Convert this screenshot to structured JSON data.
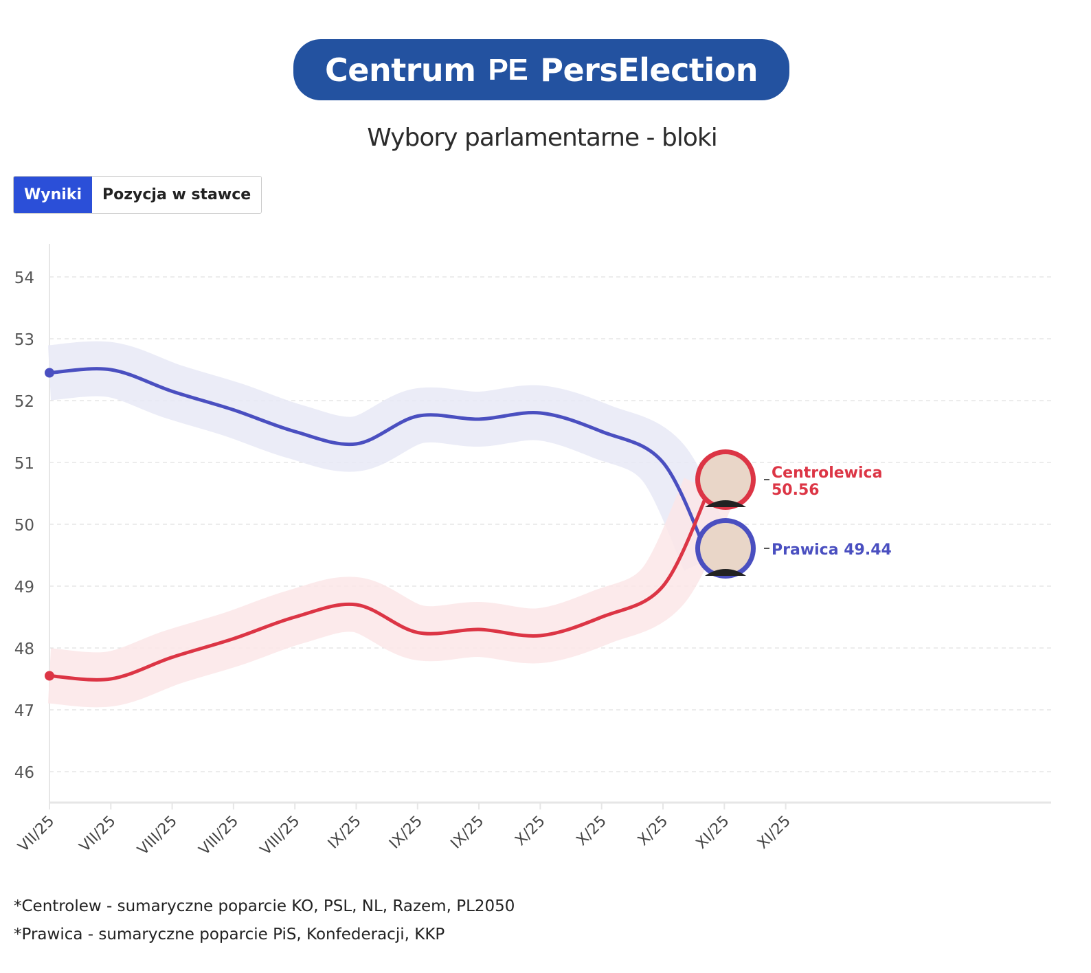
{
  "brand": {
    "left": "Centrum",
    "mark": "PE",
    "right": "PersElection"
  },
  "title": "Wybory parlamentarne - bloki",
  "tabs": [
    {
      "label": "Wyniki",
      "active": true
    },
    {
      "label": "Pozycja w stawce",
      "active": false
    }
  ],
  "footnotes": [
    "*Centrolew - sumaryczne poparcie KO, PSL, NL, Razem, PL2050",
    "*Prawica - sumaryczne poparcie PiS, Konfederacji, KKP"
  ],
  "chart_data": {
    "type": "line",
    "title": "Wybory parlamentarne - bloki",
    "x_ticks": [
      "VII/25",
      "VII/25",
      "VIII/25",
      "VIII/25",
      "VIII/25",
      "IX/25",
      "IX/25",
      "IX/25",
      "X/25",
      "X/25",
      "X/25",
      "XI/25",
      "XI/25"
    ],
    "ylim": [
      45.5,
      54.5
    ],
    "y_ticks": [
      46,
      47,
      48,
      49,
      50,
      51,
      52,
      53,
      54
    ],
    "grid": true,
    "x": [
      0,
      1,
      2,
      3,
      4,
      5,
      6,
      7,
      8,
      9,
      10,
      10.75
    ],
    "series": [
      {
        "name": "Prawica",
        "color": "#4a4fc0",
        "band": "#e8e9f6",
        "values": [
          52.45,
          52.5,
          52.15,
          51.85,
          51.5,
          51.3,
          51.75,
          51.7,
          51.8,
          51.5,
          51.0,
          49.44
        ],
        "label": "Prawica 49.44"
      },
      {
        "name": "Centrolewica",
        "color": "#dc3545",
        "band": "#fbe6e8",
        "values": [
          47.55,
          47.5,
          47.85,
          48.15,
          48.5,
          48.7,
          48.25,
          48.3,
          48.2,
          48.5,
          49.0,
          50.56
        ],
        "label_name": "Centrolewica",
        "label_value": "50.56"
      }
    ]
  }
}
